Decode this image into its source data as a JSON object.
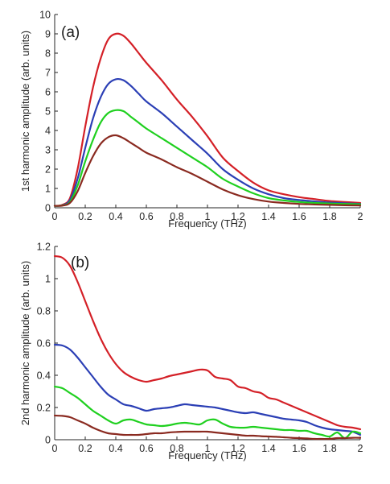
{
  "chart_data": [
    {
      "type": "line",
      "panel_label": "(a)",
      "xlabel": "Frequency (THz)",
      "ylabel": "1st harmonic amplitude (arb. units)",
      "xlim": [
        0,
        2
      ],
      "ylim": [
        0,
        10
      ],
      "xticks": [
        0,
        0.2,
        0.4,
        0.6,
        0.8,
        1,
        1.2,
        1.4,
        1.6,
        1.8,
        2
      ],
      "xtick_labels": [
        "0",
        "0.2",
        "0.4",
        "0.6",
        "0.8",
        "1",
        "1.2",
        "1.4",
        "1.6",
        "1.8",
        "2"
      ],
      "yticks": [
        0,
        1,
        2,
        3,
        4,
        5,
        6,
        7,
        8,
        9,
        10
      ],
      "ytick_labels": [
        "0",
        "1",
        "2",
        "3",
        "4",
        "5",
        "6",
        "7",
        "8",
        "9",
        "10"
      ],
      "grid": false,
      "x": [
        0,
        0.05,
        0.1,
        0.15,
        0.2,
        0.25,
        0.3,
        0.35,
        0.4,
        0.45,
        0.5,
        0.55,
        0.6,
        0.7,
        0.8,
        0.9,
        1.0,
        1.1,
        1.2,
        1.3,
        1.4,
        1.5,
        1.6,
        1.7,
        1.8,
        1.9,
        2.0
      ],
      "series": [
        {
          "color": "#d42027",
          "values": [
            0.1,
            0.15,
            0.5,
            2.0,
            4.2,
            6.2,
            7.7,
            8.7,
            9.0,
            8.9,
            8.5,
            8.0,
            7.5,
            6.6,
            5.6,
            4.7,
            3.7,
            2.6,
            1.9,
            1.3,
            0.9,
            0.7,
            0.55,
            0.45,
            0.35,
            0.3,
            0.25
          ]
        },
        {
          "color": "#2b3fb5",
          "values": [
            0.1,
            0.13,
            0.4,
            1.5,
            3.1,
            4.6,
            5.7,
            6.4,
            6.65,
            6.6,
            6.3,
            5.9,
            5.5,
            4.9,
            4.2,
            3.5,
            2.8,
            2.0,
            1.45,
            1.0,
            0.7,
            0.5,
            0.4,
            0.33,
            0.27,
            0.23,
            0.2
          ]
        },
        {
          "color": "#1fd01f",
          "values": [
            0.1,
            0.12,
            0.3,
            1.15,
            2.4,
            3.5,
            4.4,
            4.9,
            5.05,
            5.0,
            4.7,
            4.4,
            4.1,
            3.6,
            3.1,
            2.6,
            2.1,
            1.5,
            1.1,
            0.75,
            0.5,
            0.38,
            0.3,
            0.25,
            0.22,
            0.2,
            0.18
          ]
        },
        {
          "color": "#8a2a20",
          "values": [
            0.1,
            0.11,
            0.25,
            0.85,
            1.8,
            2.65,
            3.3,
            3.65,
            3.75,
            3.6,
            3.35,
            3.1,
            2.85,
            2.5,
            2.1,
            1.75,
            1.35,
            0.95,
            0.65,
            0.45,
            0.32,
            0.25,
            0.2,
            0.17,
            0.15,
            0.13,
            0.12
          ]
        }
      ]
    },
    {
      "type": "line",
      "panel_label": "(b)",
      "xlabel": "Frequency (THz)",
      "ylabel": "2nd harmonic amplitude (arb. units)",
      "xlim": [
        0,
        2
      ],
      "ylim": [
        0,
        1.2
      ],
      "xticks": [
        0,
        0.2,
        0.4,
        0.6,
        0.8,
        1,
        1.2,
        1.4,
        1.6,
        1.8,
        2
      ],
      "xtick_labels": [
        "0",
        "0.2",
        "0.4",
        "0.6",
        "0.8",
        "1",
        "1.2",
        "1.4",
        "1.6",
        "1.8",
        "2"
      ],
      "yticks": [
        0,
        0.2,
        0.4,
        0.6,
        0.8,
        1,
        1.2
      ],
      "ytick_labels": [
        "0",
        "0.2",
        "0.4",
        "0.6",
        "0.8",
        "1",
        "1.2"
      ],
      "grid": false,
      "x": [
        0,
        0.05,
        0.1,
        0.15,
        0.2,
        0.25,
        0.3,
        0.35,
        0.4,
        0.45,
        0.5,
        0.55,
        0.6,
        0.65,
        0.7,
        0.75,
        0.8,
        0.85,
        0.9,
        0.95,
        1.0,
        1.05,
        1.1,
        1.15,
        1.2,
        1.25,
        1.3,
        1.35,
        1.4,
        1.45,
        1.5,
        1.55,
        1.6,
        1.65,
        1.7,
        1.75,
        1.8,
        1.85,
        1.9,
        1.95,
        2.0
      ],
      "series": [
        {
          "color": "#d42027",
          "values": [
            1.14,
            1.13,
            1.08,
            0.98,
            0.86,
            0.74,
            0.63,
            0.54,
            0.47,
            0.42,
            0.39,
            0.37,
            0.36,
            0.37,
            0.38,
            0.395,
            0.405,
            0.415,
            0.425,
            0.435,
            0.43,
            0.39,
            0.38,
            0.37,
            0.33,
            0.32,
            0.3,
            0.29,
            0.26,
            0.25,
            0.23,
            0.21,
            0.19,
            0.17,
            0.15,
            0.13,
            0.11,
            0.09,
            0.08,
            0.075,
            0.065
          ]
        },
        {
          "color": "#2b3fb5",
          "values": [
            0.59,
            0.585,
            0.56,
            0.51,
            0.45,
            0.39,
            0.33,
            0.28,
            0.25,
            0.22,
            0.21,
            0.195,
            0.18,
            0.19,
            0.195,
            0.2,
            0.21,
            0.22,
            0.215,
            0.21,
            0.205,
            0.2,
            0.19,
            0.18,
            0.17,
            0.165,
            0.17,
            0.16,
            0.15,
            0.14,
            0.13,
            0.125,
            0.12,
            0.11,
            0.09,
            0.075,
            0.065,
            0.06,
            0.055,
            0.05,
            0.03
          ]
        },
        {
          "color": "#1fd01f",
          "values": [
            0.33,
            0.32,
            0.29,
            0.26,
            0.22,
            0.18,
            0.15,
            0.12,
            0.1,
            0.12,
            0.125,
            0.11,
            0.095,
            0.09,
            0.085,
            0.09,
            0.1,
            0.105,
            0.1,
            0.095,
            0.12,
            0.125,
            0.1,
            0.08,
            0.075,
            0.075,
            0.08,
            0.075,
            0.07,
            0.065,
            0.06,
            0.06,
            0.055,
            0.055,
            0.04,
            0.03,
            0.02,
            0.045,
            0.01,
            0.05,
            0.04
          ]
        },
        {
          "color": "#8a2a20",
          "values": [
            0.15,
            0.148,
            0.14,
            0.12,
            0.1,
            0.075,
            0.055,
            0.04,
            0.035,
            0.03,
            0.03,
            0.03,
            0.035,
            0.04,
            0.04,
            0.045,
            0.048,
            0.05,
            0.05,
            0.05,
            0.05,
            0.045,
            0.04,
            0.035,
            0.03,
            0.025,
            0.025,
            0.022,
            0.02,
            0.018,
            0.015,
            0.012,
            0.01,
            0.008,
            0.005,
            0.005,
            0.005,
            0.01,
            0.01,
            0.012,
            0.012
          ]
        }
      ]
    }
  ]
}
